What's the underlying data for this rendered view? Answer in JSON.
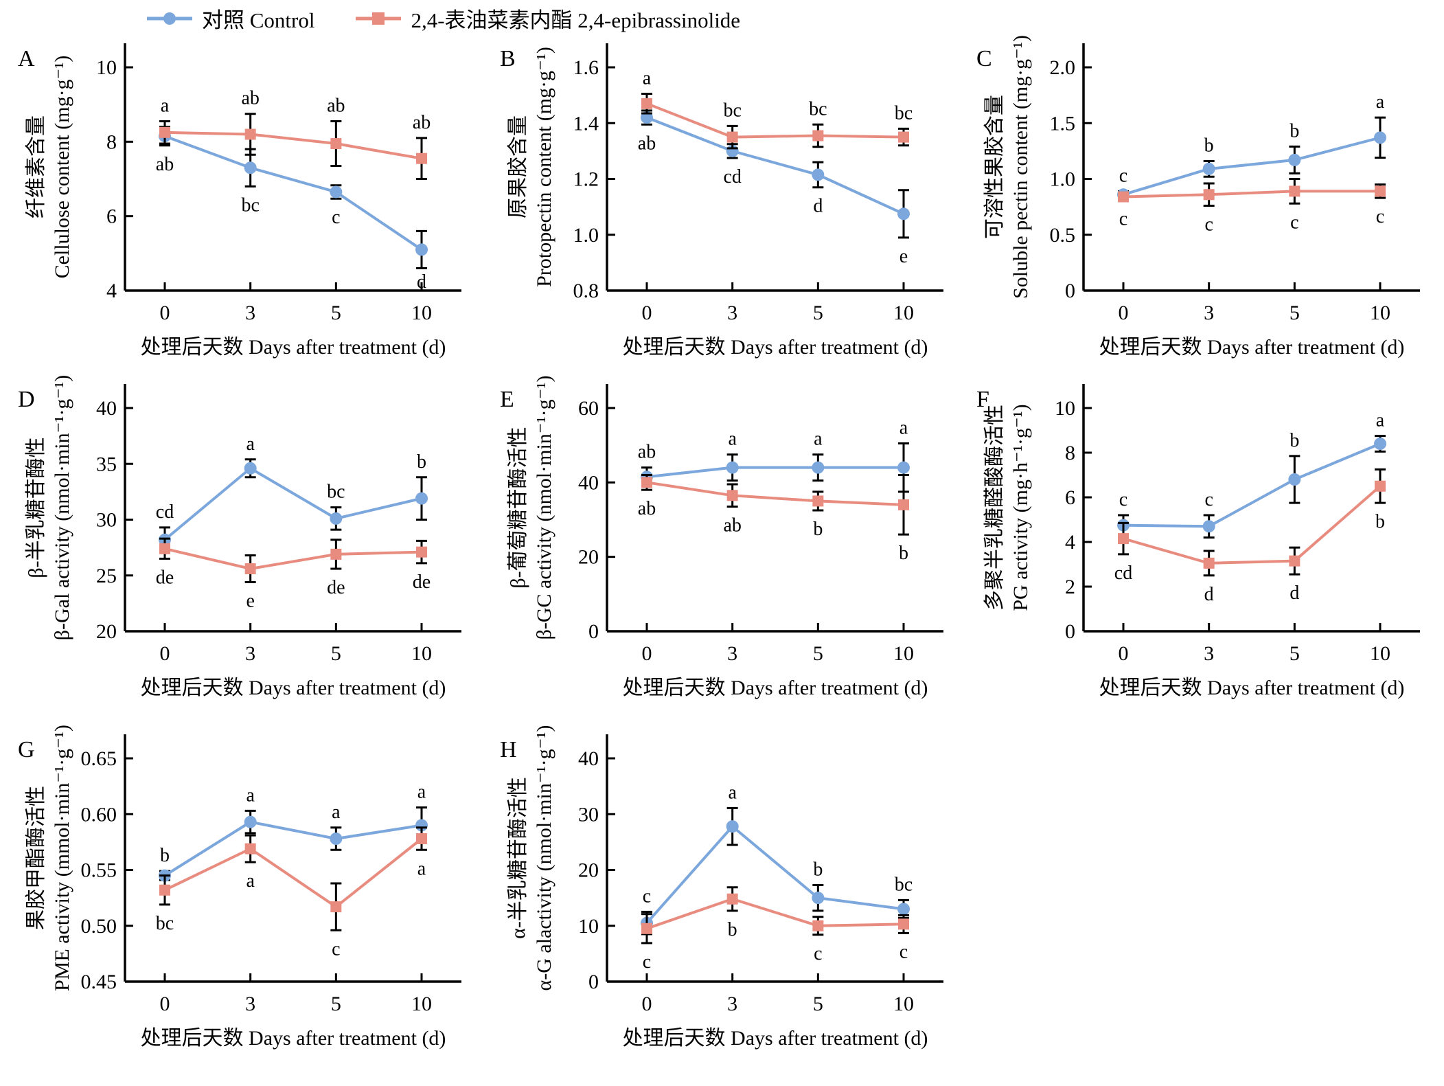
{
  "legend": {
    "items": [
      {
        "key": "control",
        "label": "对照 Control",
        "color": "#7BA7DC",
        "marker": "circle"
      },
      {
        "key": "treatment",
        "label": "2,4-表油菜素内酯 2,4-epibrassinolide",
        "color": "#E98C80",
        "marker": "square"
      }
    ]
  },
  "x_axis": {
    "label": "处理后天数 Days after treatment (d)",
    "categories": [
      "0",
      "3",
      "5",
      "10"
    ]
  },
  "chart_data": [
    {
      "id": "A",
      "type": "line",
      "ylabel_cn": "纤维素含量",
      "ylabel_en": "Cellulose content (mg·g⁻¹)",
      "xlabel": "处理后天数 Days after treatment (d)",
      "ylim": [
        4,
        10
      ],
      "yticks": [
        "4",
        "6",
        "8",
        "10"
      ],
      "series": [
        {
          "legend": "对照 Control",
          "values": [
            8.15,
            7.3,
            6.65,
            5.1
          ],
          "errors": [
            0.25,
            0.5,
            0.18,
            0.5
          ],
          "letters": [
            "ab",
            "bc",
            "c",
            "d"
          ],
          "letters_position": "below"
        },
        {
          "legend": "2,4-表油菜素内酯 2,4-epibrassinolide",
          "values": [
            8.25,
            8.2,
            7.95,
            7.55
          ],
          "errors": [
            0.3,
            0.55,
            0.6,
            0.55
          ],
          "letters": [
            "a",
            "ab",
            "ab",
            "ab"
          ],
          "letters_position": "above"
        }
      ]
    },
    {
      "id": "B",
      "type": "line",
      "ylabel_cn": "原果胶含量",
      "ylabel_en": "Protopectin content (mg·g⁻¹)",
      "xlabel": "处理后天数 Days after treatment (d)",
      "ylim": [
        0.8,
        1.6
      ],
      "yticks": [
        "0.8",
        "1.0",
        "1.2",
        "1.4",
        "1.6"
      ],
      "series": [
        {
          "legend": "对照 Control",
          "values": [
            1.42,
            1.3,
            1.215,
            1.075
          ],
          "errors": [
            0.025,
            0.025,
            0.045,
            0.085
          ],
          "letters": [
            "ab",
            "cd",
            "d",
            "e"
          ],
          "letters_position": "below"
        },
        {
          "legend": "2,4-表油菜素内酯 2,4-epibrassinolide",
          "values": [
            1.47,
            1.35,
            1.355,
            1.35
          ],
          "errors": [
            0.035,
            0.04,
            0.04,
            0.03
          ],
          "letters": [
            "a",
            "bc",
            "bc",
            "bc"
          ],
          "letters_position": "above"
        }
      ]
    },
    {
      "id": "C",
      "type": "line",
      "ylabel_cn": "可溶性果胶含量",
      "ylabel_en": "Soluble pectin content (mg·g⁻¹)",
      "xlabel": "处理后天数 Days after treatment (d)",
      "ylim": [
        0,
        2
      ],
      "yticks": [
        "0",
        "0.5",
        "1.0",
        "1.5",
        "2.0"
      ],
      "series": [
        {
          "legend": "对照 Control",
          "values": [
            0.86,
            1.09,
            1.17,
            1.37
          ],
          "errors": [
            0.03,
            0.07,
            0.12,
            0.18
          ],
          "letters": [
            "c",
            "b",
            "b",
            "a"
          ],
          "letters_position": "above"
        },
        {
          "legend": "2,4-表油菜素内酯 2,4-epibrassinolide",
          "values": [
            0.84,
            0.86,
            0.89,
            0.89
          ],
          "errors": [
            0.03,
            0.1,
            0.11,
            0.06
          ],
          "letters": [
            "c",
            "c",
            "c",
            "c"
          ],
          "letters_position": "below"
        }
      ]
    },
    {
      "id": "D",
      "type": "line",
      "ylabel_cn": "β-半乳糖苷酶性",
      "ylabel_en": "β-Gal activity (nmol·min⁻¹·g⁻¹)",
      "xlabel": "处理后天数 Days after treatment (d)",
      "ylim": [
        20,
        40
      ],
      "yticks": [
        "20",
        "25",
        "30",
        "35",
        "40"
      ],
      "series": [
        {
          "legend": "对照 Control",
          "values": [
            28.2,
            34.6,
            30.1,
            31.9
          ],
          "errors": [
            1.1,
            0.8,
            1.0,
            1.9
          ],
          "letters": [
            "cd",
            "a",
            "bc",
            "b"
          ],
          "letters_position": "above"
        },
        {
          "legend": "2,4-表油菜素内酯 2,4-epibrassinolide",
          "values": [
            27.4,
            25.6,
            26.9,
            27.1
          ],
          "errors": [
            0.9,
            1.2,
            1.3,
            1.0
          ],
          "letters": [
            "de",
            "e",
            "de",
            "de"
          ],
          "letters_position": "below"
        }
      ]
    },
    {
      "id": "E",
      "type": "line",
      "ylabel_cn": "β-葡萄糖苷酶活性",
      "ylabel_en": "β-GC activity (nmol·min⁻¹·g⁻¹)",
      "xlabel": "处理后天数 Days after treatment (d)",
      "ylim": [
        0,
        60
      ],
      "yticks": [
        "0",
        "20",
        "40",
        "60"
      ],
      "series": [
        {
          "legend": "对照 Control",
          "values": [
            41.5,
            44,
            44,
            44
          ],
          "errors": [
            2.5,
            3.5,
            3.5,
            6.5
          ],
          "letters": [
            "ab",
            "a",
            "a",
            "a"
          ],
          "letters_position": "above"
        },
        {
          "legend": "2,4-表油菜素内酯 2,4-epibrassinolide",
          "values": [
            40,
            36.5,
            35,
            34
          ],
          "errors": [
            2,
            3,
            2.5,
            8
          ],
          "letters": [
            "ab",
            "ab",
            "b",
            "b"
          ],
          "letters_position": "below"
        }
      ]
    },
    {
      "id": "F",
      "type": "line",
      "ylabel_cn": "多聚半乳糖醛酸酶活性",
      "ylabel_en": "PG activity (mg·h⁻¹·g⁻¹)",
      "xlabel": "处理后天数 Days after treatment (d)",
      "ylim": [
        0,
        10
      ],
      "yticks": [
        "0",
        "2",
        "4",
        "6",
        "8",
        "10"
      ],
      "series": [
        {
          "legend": "对照 Control",
          "values": [
            4.75,
            4.7,
            6.8,
            8.4
          ],
          "errors": [
            0.45,
            0.5,
            1.05,
            0.35
          ],
          "letters": [
            "c",
            "c",
            "b",
            "a"
          ],
          "letters_position": "above"
        },
        {
          "legend": "2,4-表油菜素内酯 2,4-epibrassinolide",
          "values": [
            4.15,
            3.05,
            3.15,
            6.5
          ],
          "errors": [
            0.7,
            0.55,
            0.6,
            0.75
          ],
          "letters": [
            "cd",
            "d",
            "d",
            "b"
          ],
          "letters_position": "below"
        }
      ]
    },
    {
      "id": "G",
      "type": "line",
      "ylabel_cn": "果胶甲酯酶活性",
      "ylabel_en": "PME activity (mmol·min⁻¹·g⁻¹)",
      "xlabel": "处理后天数 Days after treatment (d)",
      "ylim": [
        0.45,
        0.65
      ],
      "yticks": [
        "0.45",
        "0.50",
        "0.55",
        "0.60",
        "0.65"
      ],
      "series": [
        {
          "legend": "对照 Control",
          "values": [
            0.545,
            0.593,
            0.578,
            0.59
          ],
          "errors": [
            0.004,
            0.01,
            0.01,
            0.016
          ],
          "letters": [
            "b",
            "a",
            "a",
            "a"
          ],
          "letters_position": "above"
        },
        {
          "legend": "2,4-表油菜素内酯 2,4-epibrassinolide",
          "values": [
            0.532,
            0.569,
            0.517,
            0.578
          ],
          "errors": [
            0.013,
            0.012,
            0.021,
            0.01
          ],
          "letters": [
            "bc",
            "a",
            "c",
            "a"
          ],
          "letters_position": "below"
        }
      ]
    },
    {
      "id": "H",
      "type": "line",
      "ylabel_cn": "α-半乳糖苷酶活性",
      "ylabel_en": "α-G alactivity (nmol·min⁻¹·g⁻¹)",
      "xlabel": "处理后天数 Days after treatment (d)",
      "ylim": [
        0,
        40
      ],
      "yticks": [
        "0",
        "10",
        "20",
        "30",
        "40"
      ],
      "series": [
        {
          "legend": "对照 Control",
          "values": [
            10.5,
            27.8,
            15,
            13
          ],
          "errors": [
            2,
            3.3,
            2.3,
            1.6
          ],
          "letters": [
            "c",
            "a",
            "b",
            "bc"
          ],
          "letters_position": "above"
        },
        {
          "legend": "2,4-表油菜素内酯 2,4-epibrassinolide",
          "values": [
            9.5,
            14.8,
            10,
            10.3
          ],
          "errors": [
            2.6,
            2.1,
            1.6,
            1.6
          ],
          "letters": [
            "c",
            "b",
            "c",
            "c"
          ],
          "letters_position": "below"
        }
      ]
    }
  ]
}
